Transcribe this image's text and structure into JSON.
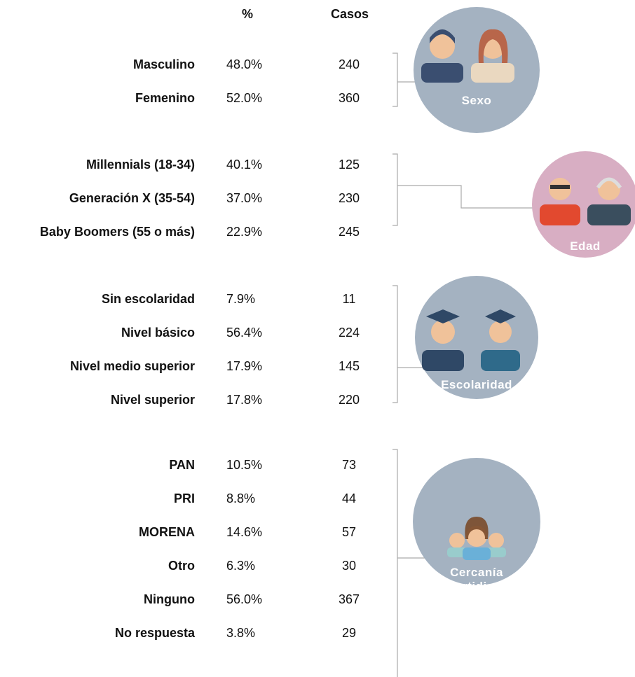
{
  "header": {
    "percent": "%",
    "cases": "Casos"
  },
  "groups": [
    {
      "label": "Sexo",
      "rows": [
        [
          "Masculino",
          "48.0%",
          "240"
        ],
        [
          "Femenino",
          "52.0%",
          "360"
        ]
      ]
    },
    {
      "label": "Edad",
      "rows": [
        [
          "Millennials (18-34)",
          "40.1%",
          "125"
        ],
        [
          "Generación X (35-54)",
          "37.0%",
          "230"
        ],
        [
          "Baby Boomers (55 o más)",
          "22.9%",
          "245"
        ]
      ]
    },
    {
      "label": "Escolaridad",
      "rows": [
        [
          "Sin escolaridad",
          "7.9%",
          "11"
        ],
        [
          "Nivel básico",
          "56.4%",
          "224"
        ],
        [
          "Nivel medio superior",
          "17.9%",
          "145"
        ],
        [
          "Nivel superior",
          "17.8%",
          "220"
        ]
      ]
    },
    {
      "label": "Cercanía partidista",
      "rows": [
        [
          "PAN",
          "10.5%",
          "73"
        ],
        [
          "PRI",
          "8.8%",
          "44"
        ],
        [
          "MORENA",
          "14.6%",
          "57"
        ],
        [
          "Otro",
          "6.3%",
          "30"
        ],
        [
          "Ninguno",
          "56.0%",
          "367"
        ],
        [
          "No respuesta",
          "3.8%",
          "29"
        ]
      ]
    }
  ]
}
